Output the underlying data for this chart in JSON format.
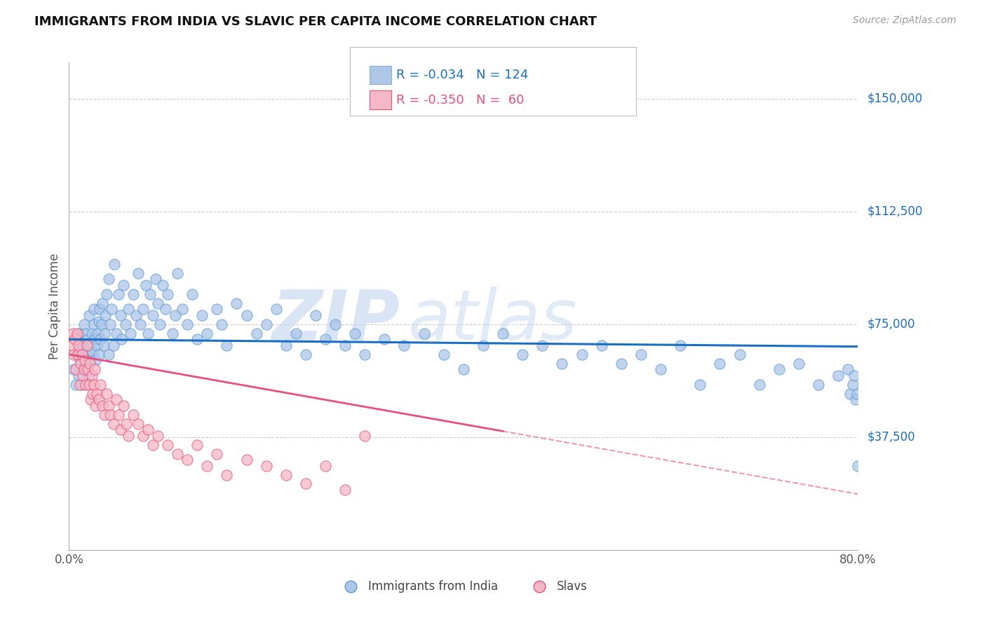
{
  "title": "IMMIGRANTS FROM INDIA VS SLAVIC PER CAPITA INCOME CORRELATION CHART",
  "source": "Source: ZipAtlas.com",
  "ylabel": "Per Capita Income",
  "watermark_zip": "ZIP",
  "watermark_atlas": "atlas",
  "legend1_r": "R = -0.034",
  "legend1_n": "N = 124",
  "legend2_r": "R = -0.350",
  "legend2_n": "N =  60",
  "legend1_color": "#aec6e8",
  "legend2_color": "#f4b8c8",
  "trendline1_color": "#1a6fc4",
  "trendline2_color": "#e8507a",
  "scatter1_color": "#aec6e8",
  "scatter2_color": "#f4b8c8",
  "scatter1_edge": "#5b9bd5",
  "scatter2_edge": "#e8507a",
  "ytick_labels": [
    "$37,500",
    "$75,000",
    "$112,500",
    "$150,000"
  ],
  "ytick_values": [
    37500,
    75000,
    112500,
    150000
  ],
  "ylim": [
    0,
    162000
  ],
  "xlim": [
    0.0,
    0.8
  ],
  "bottom_legend1": "Immigrants from India",
  "bottom_legend2": "Slavs",
  "india_x": [
    0.005,
    0.007,
    0.008,
    0.009,
    0.01,
    0.01,
    0.011,
    0.012,
    0.013,
    0.014,
    0.015,
    0.015,
    0.016,
    0.017,
    0.018,
    0.019,
    0.02,
    0.02,
    0.021,
    0.022,
    0.023,
    0.024,
    0.025,
    0.025,
    0.026,
    0.027,
    0.028,
    0.029,
    0.03,
    0.03,
    0.031,
    0.032,
    0.033,
    0.034,
    0.035,
    0.036,
    0.037,
    0.038,
    0.04,
    0.04,
    0.042,
    0.043,
    0.045,
    0.046,
    0.048,
    0.05,
    0.052,
    0.053,
    0.055,
    0.057,
    0.06,
    0.062,
    0.065,
    0.068,
    0.07,
    0.072,
    0.075,
    0.078,
    0.08,
    0.082,
    0.085,
    0.088,
    0.09,
    0.092,
    0.095,
    0.098,
    0.1,
    0.105,
    0.108,
    0.11,
    0.115,
    0.12,
    0.125,
    0.13,
    0.135,
    0.14,
    0.15,
    0.155,
    0.16,
    0.17,
    0.18,
    0.19,
    0.2,
    0.21,
    0.22,
    0.23,
    0.24,
    0.25,
    0.26,
    0.27,
    0.28,
    0.29,
    0.3,
    0.32,
    0.34,
    0.36,
    0.38,
    0.4,
    0.42,
    0.44,
    0.46,
    0.48,
    0.5,
    0.52,
    0.54,
    0.56,
    0.58,
    0.6,
    0.62,
    0.64,
    0.66,
    0.68,
    0.7,
    0.72,
    0.74,
    0.76,
    0.78,
    0.79,
    0.792,
    0.795,
    0.796,
    0.798,
    0.799,
    0.8
  ],
  "india_y": [
    60000,
    55000,
    65000,
    70000,
    58000,
    72000,
    63000,
    67000,
    55000,
    68000,
    60000,
    75000,
    62000,
    72000,
    65000,
    70000,
    58000,
    78000,
    63000,
    68000,
    72000,
    66000,
    75000,
    80000,
    70000,
    63000,
    68000,
    72000,
    76000,
    65000,
    80000,
    70000,
    75000,
    82000,
    68000,
    72000,
    78000,
    85000,
    65000,
    90000,
    75000,
    80000,
    68000,
    95000,
    72000,
    85000,
    78000,
    70000,
    88000,
    75000,
    80000,
    72000,
    85000,
    78000,
    92000,
    75000,
    80000,
    88000,
    72000,
    85000,
    78000,
    90000,
    82000,
    75000,
    88000,
    80000,
    85000,
    72000,
    78000,
    92000,
    80000,
    75000,
    85000,
    70000,
    78000,
    72000,
    80000,
    75000,
    68000,
    82000,
    78000,
    72000,
    75000,
    80000,
    68000,
    72000,
    65000,
    78000,
    70000,
    75000,
    68000,
    72000,
    65000,
    70000,
    68000,
    72000,
    65000,
    60000,
    68000,
    72000,
    65000,
    68000,
    62000,
    65000,
    68000,
    62000,
    65000,
    60000,
    68000,
    55000,
    62000,
    65000,
    55000,
    60000,
    62000,
    55000,
    58000,
    60000,
    52000,
    55000,
    58000,
    50000,
    52000,
    28000
  ],
  "slavic_x": [
    0.003,
    0.004,
    0.005,
    0.006,
    0.007,
    0.008,
    0.009,
    0.01,
    0.011,
    0.012,
    0.013,
    0.014,
    0.015,
    0.016,
    0.017,
    0.018,
    0.019,
    0.02,
    0.021,
    0.022,
    0.023,
    0.024,
    0.025,
    0.026,
    0.027,
    0.028,
    0.03,
    0.032,
    0.034,
    0.036,
    0.038,
    0.04,
    0.042,
    0.045,
    0.048,
    0.05,
    0.052,
    0.055,
    0.058,
    0.06,
    0.065,
    0.07,
    0.075,
    0.08,
    0.085,
    0.09,
    0.1,
    0.11,
    0.12,
    0.13,
    0.14,
    0.15,
    0.16,
    0.18,
    0.2,
    0.22,
    0.24,
    0.26,
    0.28,
    0.3
  ],
  "slavic_y": [
    68000,
    72000,
    65000,
    70000,
    60000,
    72000,
    65000,
    68000,
    55000,
    62000,
    65000,
    58000,
    60000,
    63000,
    55000,
    68000,
    60000,
    55000,
    62000,
    50000,
    58000,
    52000,
    55000,
    60000,
    48000,
    52000,
    50000,
    55000,
    48000,
    45000,
    52000,
    48000,
    45000,
    42000,
    50000,
    45000,
    40000,
    48000,
    42000,
    38000,
    45000,
    42000,
    38000,
    40000,
    35000,
    38000,
    35000,
    32000,
    30000,
    35000,
    28000,
    32000,
    25000,
    30000,
    28000,
    25000,
    22000,
    28000,
    20000,
    38000
  ]
}
